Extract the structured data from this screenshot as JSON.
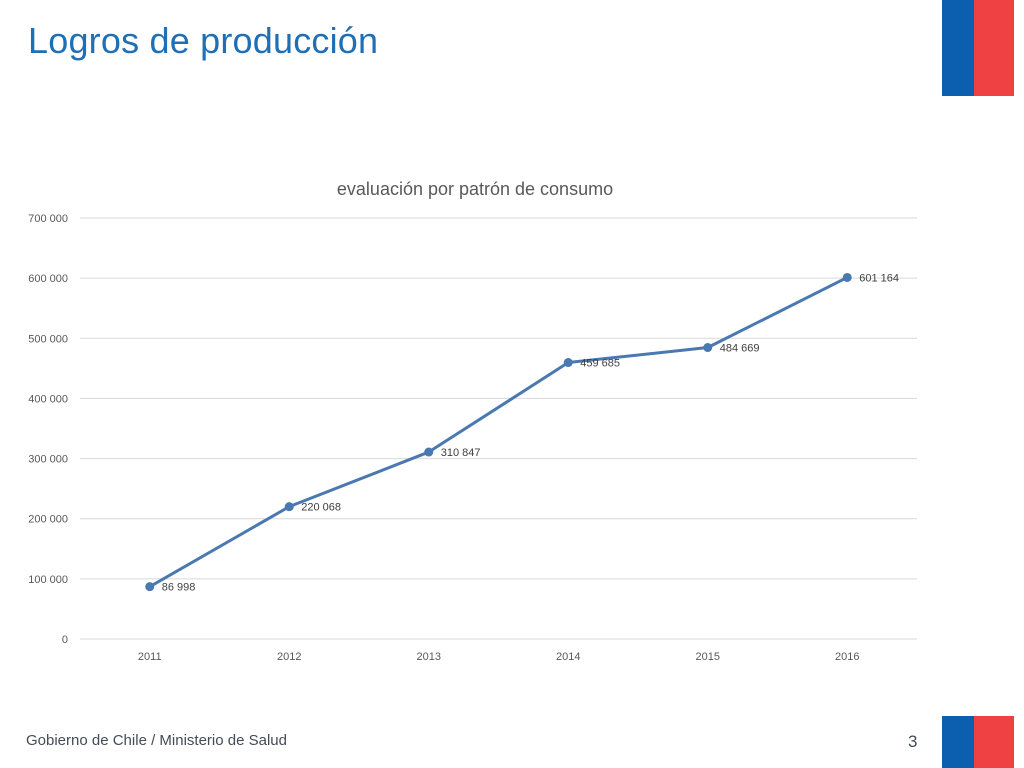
{
  "slide": {
    "title": "Logros de producción",
    "footer": "Gobierno de Chile / Ministerio de Salud",
    "page_number": "3"
  },
  "colors": {
    "title": "#1f6fb5",
    "flag_blue": "#0b5fae",
    "flag_red": "#ef4044",
    "series": "#4a78b0",
    "grid": "#d9d9d9"
  },
  "chart_data": {
    "type": "line",
    "title": "evaluación por patrón de consumo",
    "xlabel": "",
    "ylabel": "",
    "categories": [
      "2011",
      "2012",
      "2013",
      "2014",
      "2015",
      "2016"
    ],
    "series": [
      {
        "values": [
          86998,
          220068,
          310847,
          459685,
          484669,
          601164
        ],
        "labels": [
          "86 998",
          "220 068",
          "310 847",
          "459 685",
          "484 669",
          "601 164"
        ]
      }
    ],
    "ylim": [
      0,
      700000
    ],
    "yticks": [
      0,
      100000,
      200000,
      300000,
      400000,
      500000,
      600000,
      700000
    ],
    "ytick_labels": [
      "0",
      "100 000",
      "200 000",
      "300 000",
      "400 000",
      "500 000",
      "600 000",
      "700 000"
    ],
    "grid": true,
    "legend": "none"
  }
}
